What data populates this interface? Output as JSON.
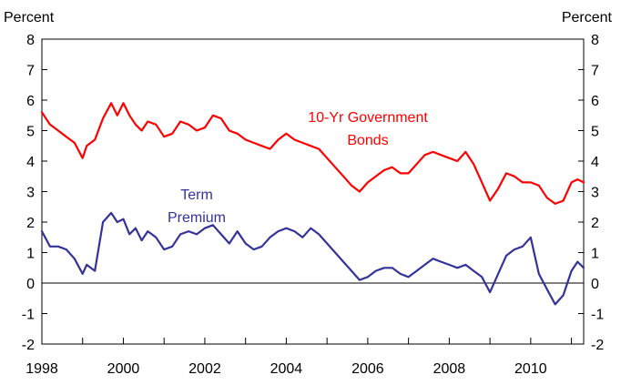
{
  "chart_data": {
    "type": "line",
    "ylabel_left": "Percent",
    "ylabel_right": "Percent",
    "ylim": [
      -2,
      8
    ],
    "yticks": [
      -2,
      -1,
      0,
      1,
      2,
      3,
      4,
      5,
      6,
      7,
      8
    ],
    "xlim": [
      1998,
      2011.3
    ],
    "xticks": [
      1998,
      1999,
      2000,
      2001,
      2002,
      2003,
      2004,
      2005,
      2006,
      2007,
      2008,
      2009,
      2010,
      2011
    ],
    "xtick_labels": [
      "1998",
      "2000",
      "2002",
      "2004",
      "2006",
      "2008",
      "2010"
    ],
    "zero_line": true,
    "grid": false,
    "series": [
      {
        "name": "10-Yr Government Bonds",
        "label_lines": [
          "10-Yr Government",
          "Bonds"
        ],
        "color": "#ff0000",
        "x": [
          1998.0,
          1998.2,
          1998.4,
          1998.6,
          1998.8,
          1999.0,
          1999.1,
          1999.3,
          1999.5,
          1999.7,
          1999.85,
          2000.0,
          2000.15,
          2000.3,
          2000.45,
          2000.6,
          2000.8,
          2001.0,
          2001.2,
          2001.4,
          2001.6,
          2001.8,
          2002.0,
          2002.2,
          2002.4,
          2002.6,
          2002.8,
          2003.0,
          2003.2,
          2003.4,
          2003.6,
          2003.8,
          2004.0,
          2004.2,
          2004.4,
          2004.6,
          2004.8,
          2005.0,
          2005.2,
          2005.4,
          2005.6,
          2005.8,
          2006.0,
          2006.2,
          2006.4,
          2006.6,
          2006.8,
          2007.0,
          2007.2,
          2007.4,
          2007.6,
          2007.8,
          2008.0,
          2008.2,
          2008.4,
          2008.6,
          2008.8,
          2009.0,
          2009.2,
          2009.4,
          2009.6,
          2009.8,
          2010.0,
          2010.2,
          2010.4,
          2010.6,
          2010.8,
          2011.0,
          2011.15,
          2011.3
        ],
        "values": [
          5.6,
          5.2,
          5.0,
          4.8,
          4.6,
          4.1,
          4.5,
          4.7,
          5.4,
          5.9,
          5.5,
          5.9,
          5.5,
          5.2,
          5.0,
          5.3,
          5.2,
          4.8,
          4.9,
          5.3,
          5.2,
          5.0,
          5.1,
          5.5,
          5.4,
          5.0,
          4.9,
          4.7,
          4.6,
          4.5,
          4.4,
          4.7,
          4.9,
          4.7,
          4.6,
          4.5,
          4.4,
          4.1,
          3.8,
          3.5,
          3.2,
          3.0,
          3.3,
          3.5,
          3.7,
          3.8,
          3.6,
          3.6,
          3.9,
          4.2,
          4.3,
          4.2,
          4.1,
          4.0,
          4.3,
          3.9,
          3.3,
          2.7,
          3.1,
          3.6,
          3.5,
          3.3,
          3.3,
          3.2,
          2.8,
          2.6,
          2.7,
          3.3,
          3.4,
          3.3
        ]
      },
      {
        "name": "Term Premium",
        "label_lines": [
          "Term",
          "Premium"
        ],
        "color": "#333399",
        "x": [
          1998.0,
          1998.2,
          1998.4,
          1998.6,
          1998.8,
          1999.0,
          1999.1,
          1999.3,
          1999.5,
          1999.7,
          1999.85,
          2000.0,
          2000.15,
          2000.3,
          2000.45,
          2000.6,
          2000.8,
          2001.0,
          2001.2,
          2001.4,
          2001.6,
          2001.8,
          2002.0,
          2002.2,
          2002.4,
          2002.6,
          2002.8,
          2003.0,
          2003.2,
          2003.4,
          2003.6,
          2003.8,
          2004.0,
          2004.2,
          2004.4,
          2004.6,
          2004.8,
          2005.0,
          2005.2,
          2005.4,
          2005.6,
          2005.8,
          2006.0,
          2006.2,
          2006.4,
          2006.6,
          2006.8,
          2007.0,
          2007.2,
          2007.4,
          2007.6,
          2007.8,
          2008.0,
          2008.2,
          2008.4,
          2008.6,
          2008.8,
          2009.0,
          2009.2,
          2009.4,
          2009.6,
          2009.8,
          2010.0,
          2010.2,
          2010.4,
          2010.6,
          2010.8,
          2011.0,
          2011.15,
          2011.3
        ],
        "values": [
          1.7,
          1.2,
          1.2,
          1.1,
          0.8,
          0.3,
          0.6,
          0.4,
          2.0,
          2.3,
          2.0,
          2.1,
          1.6,
          1.8,
          1.4,
          1.7,
          1.5,
          1.1,
          1.2,
          1.6,
          1.7,
          1.6,
          1.8,
          1.9,
          1.6,
          1.3,
          1.7,
          1.3,
          1.1,
          1.2,
          1.5,
          1.7,
          1.8,
          1.7,
          1.5,
          1.8,
          1.6,
          1.3,
          1.0,
          0.7,
          0.4,
          0.1,
          0.2,
          0.4,
          0.5,
          0.5,
          0.3,
          0.2,
          0.4,
          0.6,
          0.8,
          0.7,
          0.6,
          0.5,
          0.6,
          0.4,
          0.2,
          -0.3,
          0.3,
          0.9,
          1.1,
          1.2,
          1.5,
          0.3,
          -0.2,
          -0.7,
          -0.4,
          0.4,
          0.7,
          0.5
        ]
      }
    ]
  }
}
